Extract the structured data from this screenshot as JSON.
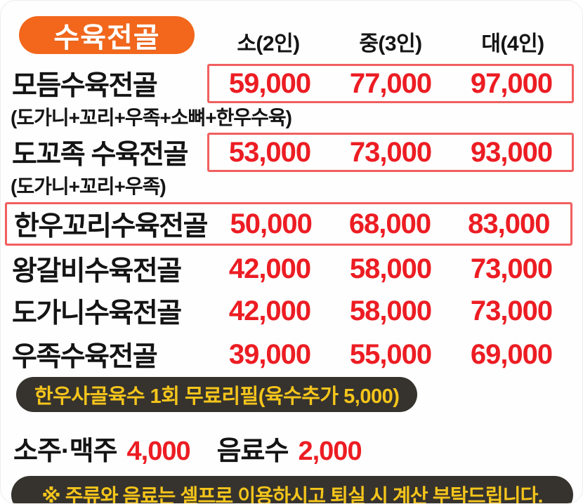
{
  "category_badge": {
    "label": "수육전골"
  },
  "price_columns": [
    "소(2인)",
    "중(3인)",
    "대(4인)"
  ],
  "menu_items": [
    {
      "name": "모듬수육전골",
      "note": "(도가니+꼬리+우족+소뼈+한우수육)",
      "prices": [
        "59,000",
        "77,000",
        "97,000"
      ],
      "highlight": "prices"
    },
    {
      "name": "도꼬족 수육전골",
      "note": "(도가니+꼬리+우족)",
      "prices": [
        "53,000",
        "73,000",
        "93,000"
      ],
      "highlight": "prices"
    },
    {
      "name": "한우꼬리수육전골",
      "prices": [
        "50,000",
        "68,000",
        "83,000"
      ],
      "highlight": "row"
    },
    {
      "name": "왕갈비수육전골",
      "prices": [
        "42,000",
        "58,000",
        "73,000"
      ],
      "highlight": "none"
    },
    {
      "name": "도가니수육전골",
      "prices": [
        "42,000",
        "58,000",
        "73,000"
      ],
      "highlight": "none"
    },
    {
      "name": "우족수육전골",
      "prices": [
        "39,000",
        "55,000",
        "69,000"
      ],
      "highlight": "none"
    }
  ],
  "refill_banner": {
    "text": "한우사골육수 1회 무료리필(육수추가 5,000)"
  },
  "drinks": [
    {
      "label": "소주·맥주",
      "price": "4,000"
    },
    {
      "label": "음료수",
      "price": "2,000"
    }
  ],
  "notice": {
    "text": "※ 주류와 음료는 셀프로 이용하시고 퇴실 시 계산 부탁드립니다."
  },
  "colors": {
    "badge_orange": "#f2671c",
    "price_red": "#ec1d23",
    "highlight_box_red": "#f15f5f",
    "banner_bg": "#36332e",
    "banner_yellow": "#f5c51b",
    "text_black": "#141414"
  }
}
